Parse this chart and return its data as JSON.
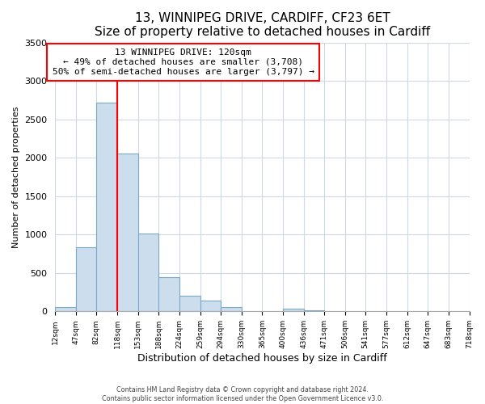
{
  "title1": "13, WINNIPEG DRIVE, CARDIFF, CF23 6ET",
  "title2": "Size of property relative to detached houses in Cardiff",
  "xlabel": "Distribution of detached houses by size in Cardiff",
  "ylabel": "Number of detached properties",
  "bin_edges": [
    12,
    47,
    82,
    118,
    153,
    188,
    224,
    259,
    294,
    330,
    365,
    400,
    436,
    471,
    506,
    541,
    577,
    612,
    647,
    683,
    718
  ],
  "bar_heights": [
    55,
    840,
    2720,
    2060,
    1010,
    450,
    205,
    145,
    55,
    0,
    0,
    30,
    18,
    0,
    0,
    0,
    0,
    0,
    0,
    0
  ],
  "bar_color": "#ccdded",
  "bar_edge_color": "#7aaac8",
  "property_line_x": 118,
  "property_line_color": "red",
  "annotation_title": "13 WINNIPEG DRIVE: 120sqm",
  "annotation_line1": "← 49% of detached houses are smaller (3,708)",
  "annotation_line2": "50% of semi-detached houses are larger (3,797) →",
  "annotation_box_color": "white",
  "annotation_box_edge": "red",
  "ylim": [
    0,
    3500
  ],
  "tick_labels": [
    "12sqm",
    "47sqm",
    "82sqm",
    "118sqm",
    "153sqm",
    "188sqm",
    "224sqm",
    "259sqm",
    "294sqm",
    "330sqm",
    "365sqm",
    "400sqm",
    "436sqm",
    "471sqm",
    "506sqm",
    "541sqm",
    "577sqm",
    "612sqm",
    "647sqm",
    "683sqm",
    "718sqm"
  ],
  "footer1": "Contains HM Land Registry data © Crown copyright and database right 2024.",
  "footer2": "Contains public sector information licensed under the Open Government Licence v3.0.",
  "background_color": "white",
  "grid_color": "#d0d8e8",
  "title_fontsize": 11,
  "subtitle_fontsize": 9
}
